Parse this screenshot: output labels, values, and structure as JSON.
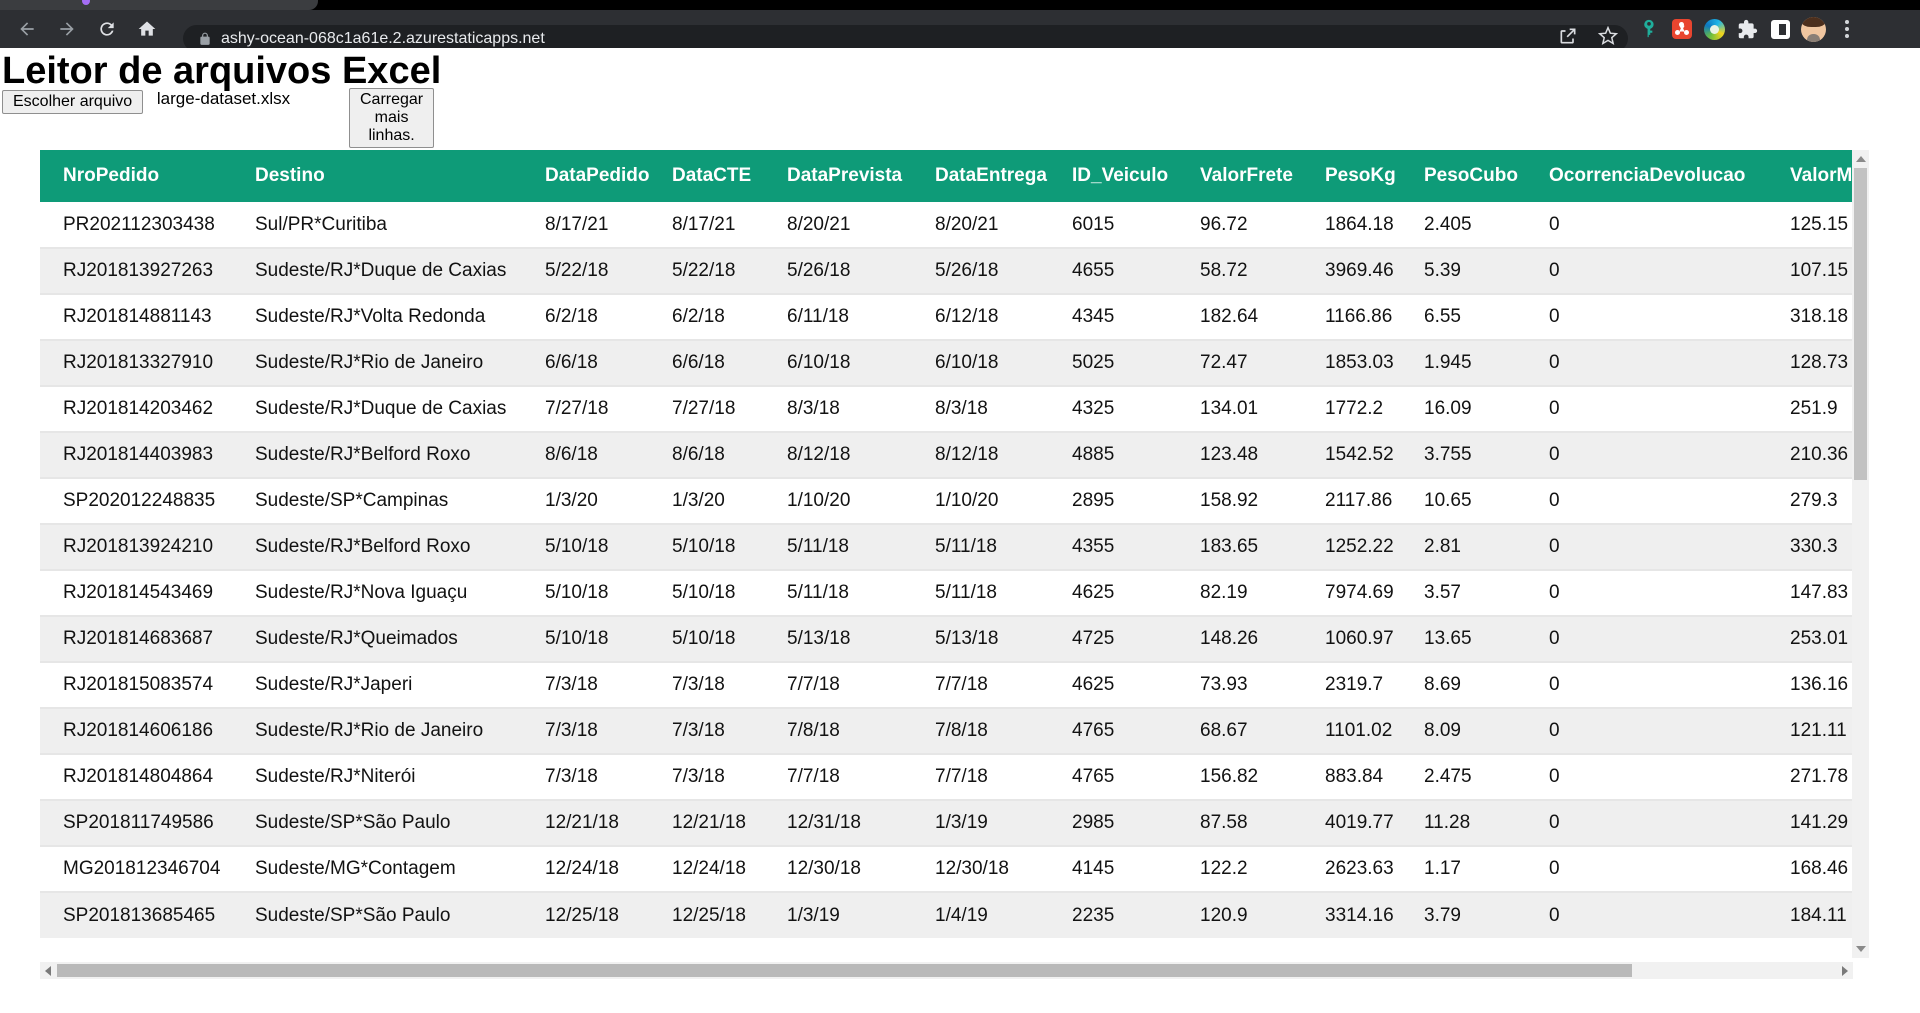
{
  "browser": {
    "url": "ashy-ocean-068c1a61e.2.azurestaticapps.net"
  },
  "page": {
    "title": "Leitor de arquivos Excel",
    "file_input": {
      "button_label": "Escolher arquivo",
      "file_name": "large-dataset.xlsx"
    },
    "load_more_label": "Carregar mais linhas."
  },
  "table": {
    "columns": [
      "NroPedido",
      "Destino",
      "DataPedido",
      "DataCTE",
      "DataPrevista",
      "DataEntrega",
      "ID_Veiculo",
      "ValorFrete",
      "PesoKg",
      "PesoCubo",
      "OcorrenciaDevolucao",
      "ValorMe"
    ],
    "rows": [
      [
        "PR202112303438",
        "Sul/PR*Curitiba",
        "8/17/21",
        "8/17/21",
        "8/20/21",
        "8/20/21",
        "6015",
        "96.72",
        "1864.18",
        "2.405",
        "0",
        "125.15"
      ],
      [
        "RJ201813927263",
        "Sudeste/RJ*Duque de Caxias",
        "5/22/18",
        "5/22/18",
        "5/26/18",
        "5/26/18",
        "4655",
        "58.72",
        "3969.46",
        "5.39",
        "0",
        "107.15"
      ],
      [
        "RJ201814881143",
        "Sudeste/RJ*Volta Redonda",
        "6/2/18",
        "6/2/18",
        "6/11/18",
        "6/12/18",
        "4345",
        "182.64",
        "1166.86",
        "6.55",
        "0",
        "318.18"
      ],
      [
        "RJ201813327910",
        "Sudeste/RJ*Rio de Janeiro",
        "6/6/18",
        "6/6/18",
        "6/10/18",
        "6/10/18",
        "5025",
        "72.47",
        "1853.03",
        "1.945",
        "0",
        "128.73"
      ],
      [
        "RJ201814203462",
        "Sudeste/RJ*Duque de Caxias",
        "7/27/18",
        "7/27/18",
        "8/3/18",
        "8/3/18",
        "4325",
        "134.01",
        "1772.2",
        "16.09",
        "0",
        "251.9"
      ],
      [
        "RJ201814403983",
        "Sudeste/RJ*Belford Roxo",
        "8/6/18",
        "8/6/18",
        "8/12/18",
        "8/12/18",
        "4885",
        "123.48",
        "1542.52",
        "3.755",
        "0",
        "210.36"
      ],
      [
        "SP202012248835",
        "Sudeste/SP*Campinas",
        "1/3/20",
        "1/3/20",
        "1/10/20",
        "1/10/20",
        "2895",
        "158.92",
        "2117.86",
        "10.65",
        "0",
        "279.3"
      ],
      [
        "RJ201813924210",
        "Sudeste/RJ*Belford Roxo",
        "5/10/18",
        "5/10/18",
        "5/11/18",
        "5/11/18",
        "4355",
        "183.65",
        "1252.22",
        "2.81",
        "0",
        "330.3"
      ],
      [
        "RJ201814543469",
        "Sudeste/RJ*Nova Iguaçu",
        "5/10/18",
        "5/10/18",
        "5/11/18",
        "5/11/18",
        "4625",
        "82.19",
        "7974.69",
        "3.57",
        "0",
        "147.83"
      ],
      [
        "RJ201814683687",
        "Sudeste/RJ*Queimados",
        "5/10/18",
        "5/10/18",
        "5/13/18",
        "5/13/18",
        "4725",
        "148.26",
        "1060.97",
        "13.65",
        "0",
        "253.01"
      ],
      [
        "RJ201815083574",
        "Sudeste/RJ*Japeri",
        "7/3/18",
        "7/3/18",
        "7/7/18",
        "7/7/18",
        "4625",
        "73.93",
        "2319.7",
        "8.69",
        "0",
        "136.16"
      ],
      [
        "RJ201814606186",
        "Sudeste/RJ*Rio de Janeiro",
        "7/3/18",
        "7/3/18",
        "7/8/18",
        "7/8/18",
        "4765",
        "68.67",
        "1101.02",
        "8.09",
        "0",
        "121.11"
      ],
      [
        "RJ201814804864",
        "Sudeste/RJ*Niterói",
        "7/3/18",
        "7/3/18",
        "7/7/18",
        "7/7/18",
        "4765",
        "156.82",
        "883.84",
        "2.475",
        "0",
        "271.78"
      ],
      [
        "SP201811749586",
        "Sudeste/SP*São Paulo",
        "12/21/18",
        "12/21/18",
        "12/31/18",
        "1/3/19",
        "2985",
        "87.58",
        "4019.77",
        "11.28",
        "0",
        "141.29"
      ],
      [
        "MG201812346704",
        "Sudeste/MG*Contagem",
        "12/24/18",
        "12/24/18",
        "12/30/18",
        "12/30/18",
        "4145",
        "122.2",
        "2623.63",
        "1.17",
        "0",
        "168.46"
      ],
      [
        "SP201813685465",
        "Sudeste/SP*São Paulo",
        "12/25/18",
        "12/25/18",
        "1/3/19",
        "1/4/19",
        "2235",
        "120.9",
        "3314.16",
        "3.79",
        "0",
        "184.11"
      ]
    ]
  },
  "colors": {
    "header_bg": "#0e9b78",
    "stripe": "#efefef",
    "toolbar_bg": "#2d2f33",
    "omnibox_bg": "#1e2023",
    "key_ext": "#1fae9b",
    "red_ext": "#e8452f"
  }
}
